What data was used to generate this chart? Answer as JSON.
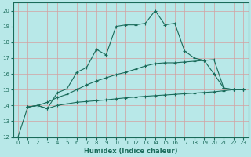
{
  "bg_color": "#b8e8e8",
  "grid_color": "#d4a0a0",
  "line_color": "#1a6b5a",
  "xlabel": "Humidex (Indice chaleur)",
  "xlim": [
    -0.5,
    23.5
  ],
  "ylim": [
    12,
    20.5
  ],
  "yticks": [
    12,
    13,
    14,
    15,
    16,
    17,
    18,
    19,
    20
  ],
  "xticks": [
    0,
    1,
    2,
    3,
    4,
    5,
    6,
    7,
    8,
    9,
    10,
    11,
    12,
    13,
    14,
    15,
    16,
    17,
    18,
    19,
    20,
    21,
    22,
    23
  ],
  "curve1_x": [
    0,
    1,
    2,
    3,
    4,
    5,
    6,
    7,
    8,
    9,
    10,
    11,
    12,
    13,
    14,
    15,
    16,
    17,
    18,
    19,
    20,
    21,
    22,
    23
  ],
  "curve1_y": [
    12.0,
    13.9,
    14.0,
    13.8,
    14.8,
    15.05,
    16.1,
    16.4,
    17.55,
    17.2,
    19.0,
    19.1,
    19.1,
    19.2,
    20.0,
    19.1,
    19.2,
    17.45,
    17.0,
    16.85,
    16.0,
    15.1,
    15.0,
    15.0
  ],
  "curve2_x": [
    1,
    2,
    3,
    4,
    5,
    6,
    7,
    8,
    9,
    10,
    11,
    12,
    13,
    14,
    15,
    16,
    17,
    18,
    19,
    20,
    21,
    22,
    23
  ],
  "curve2_y": [
    13.9,
    14.0,
    14.2,
    14.5,
    14.7,
    15.0,
    15.3,
    15.55,
    15.75,
    15.95,
    16.1,
    16.3,
    16.5,
    16.65,
    16.7,
    16.7,
    16.75,
    16.8,
    16.85,
    16.9,
    15.1,
    15.0,
    15.0
  ],
  "curve3_x": [
    1,
    2,
    3,
    4,
    5,
    6,
    7,
    8,
    9,
    10,
    11,
    12,
    13,
    14,
    15,
    16,
    17,
    18,
    19,
    20,
    21,
    22,
    23
  ],
  "curve3_y": [
    13.9,
    14.0,
    13.8,
    14.0,
    14.1,
    14.2,
    14.25,
    14.3,
    14.35,
    14.42,
    14.48,
    14.53,
    14.58,
    14.62,
    14.66,
    14.7,
    14.74,
    14.78,
    14.82,
    14.86,
    14.93,
    15.0,
    15.0
  ]
}
